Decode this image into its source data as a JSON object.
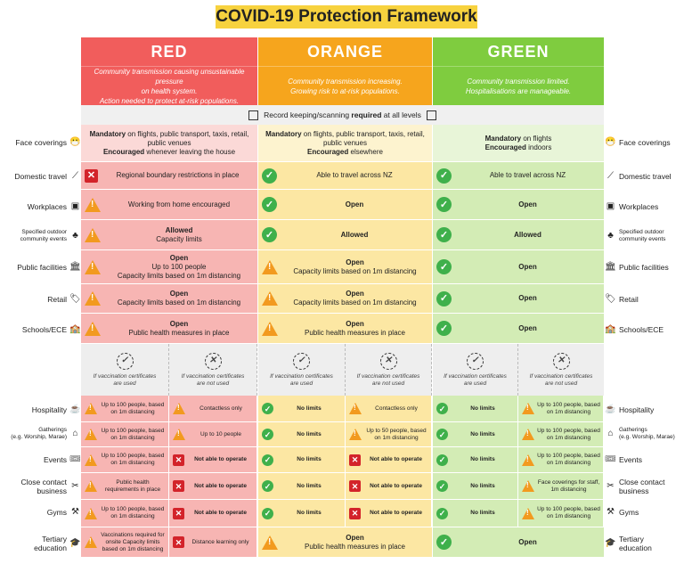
{
  "title": "COVID-19 Protection Framework",
  "levels": [
    {
      "name": "RED",
      "color": "#f15d5c",
      "desc1": "Community transmission causing unsustainable pressure",
      "desc2": "on health system.",
      "desc3": "Action needed to protect at-risk populations."
    },
    {
      "name": "ORANGE",
      "color": "#f6a51d",
      "desc1": "Community transmission increasing.",
      "desc2": "Growing risk to at-risk populations.",
      "desc3": ""
    },
    {
      "name": "GREEN",
      "color": "#7fcc3f",
      "desc1": "Community transmission limited.",
      "desc2": "Hospitalisations are manageable.",
      "desc3": ""
    }
  ],
  "record": {
    "pre": "Record keeping/scanning ",
    "bold": "required",
    "post": " at all levels"
  },
  "labels": {
    "face": "Face coverings",
    "travel": "Domestic travel",
    "work": "Workplaces",
    "outdoor": "Specified outdoor community events",
    "public": "Public facilities",
    "retail": "Retail",
    "schools": "Schools/ECE",
    "hosp": "Hospitality",
    "gath1": "Gatherings",
    "gath2": "(e.g. Worship, Marae)",
    "gath2r": "(e.g. Worship, Marae)",
    "events": "Events",
    "close1": "Close contact",
    "close2": "business",
    "gyms": "Gyms",
    "tert1": "Tertiary",
    "tert2": "education"
  },
  "face": {
    "red": {
      "b1": "Mandatory",
      "t1": " on flights, public transport, taxis, retail, public venues",
      "b2": "Encouraged",
      "t2": " whenever leaving the house"
    },
    "orange": {
      "b1": "Mandatory",
      "t1": " on flights, public transport, taxis, retail, public venues",
      "b2": "Encouraged",
      "t2": " elsewhere"
    },
    "green": {
      "b1": "Mandatory",
      "t1": " on flights",
      "b2": "Encouraged",
      "t2": " indoors"
    }
  },
  "rows": {
    "travel": {
      "red": "Regional boundary restrictions in place",
      "orange": "Able to travel across NZ",
      "green": "Able to travel across NZ"
    },
    "work": {
      "red": "Working from home encouraged",
      "orange": "Open",
      "green": "Open"
    },
    "outdoor": {
      "red1": "Allowed",
      "red2": "Capacity limits",
      "orange": "Allowed",
      "green": "Allowed"
    },
    "public": {
      "red1": "Open",
      "red2": "Up to 100 people",
      "red3": "Capacity limits based on 1m distancing",
      "orange1": "Open",
      "orange2": "Capacity limits based on 1m distancing",
      "green": "Open"
    },
    "retail": {
      "red1": "Open",
      "red2": "Capacity limits based on 1m distancing",
      "orange1": "Open",
      "orange2": "Capacity limits based on 1m distancing",
      "green": "Open"
    },
    "schools": {
      "red1": "Open",
      "red2": "Public health measures in place",
      "orange1": "Open",
      "orange2": "Public health measures in place",
      "green": "Open"
    }
  },
  "vax": {
    "used1": "If vaccination certificates",
    "used2": "are used",
    "notused1": "If vaccination certificates",
    "notused2": "are not used"
  },
  "vrows": {
    "hosp": [
      "Up to 100 people, based on 1m distancing",
      "Contactless only",
      "No limits",
      "Contactless only",
      "No limits",
      "Up to 100 people, based on 1m distancing"
    ],
    "gath": [
      "Up to 100 people, based on 1m distancing",
      "Up to 10 people",
      "No limits",
      "Up to 50 people, based on 1m distancing",
      "No limits",
      "Up to 100 people, based on 1m distancing"
    ],
    "events": [
      "Up to 100 people, based on 1m distancing",
      "Not able to operate",
      "No limits",
      "Not able to operate",
      "No limits",
      "Up to 100 people, based on 1m distancing"
    ],
    "close": [
      "Public health requirements in place",
      "Not able to operate",
      "No limits",
      "Not able to operate",
      "No limits",
      "Face coverings for staff, 1m distancing"
    ],
    "gyms": [
      "Up to 100 people, based on 1m distancing",
      "Not able to operate",
      "No limits",
      "Not able to operate",
      "No limits",
      "Up to 100 people, based on 1m distancing"
    ],
    "tert": [
      "Vaccinations required for onsite Capacity limits based on 1m distancing",
      "Distance learning only"
    ]
  },
  "tert": {
    "orange1": "Open",
    "orange2": "Public health measures in place",
    "green": "Open"
  }
}
